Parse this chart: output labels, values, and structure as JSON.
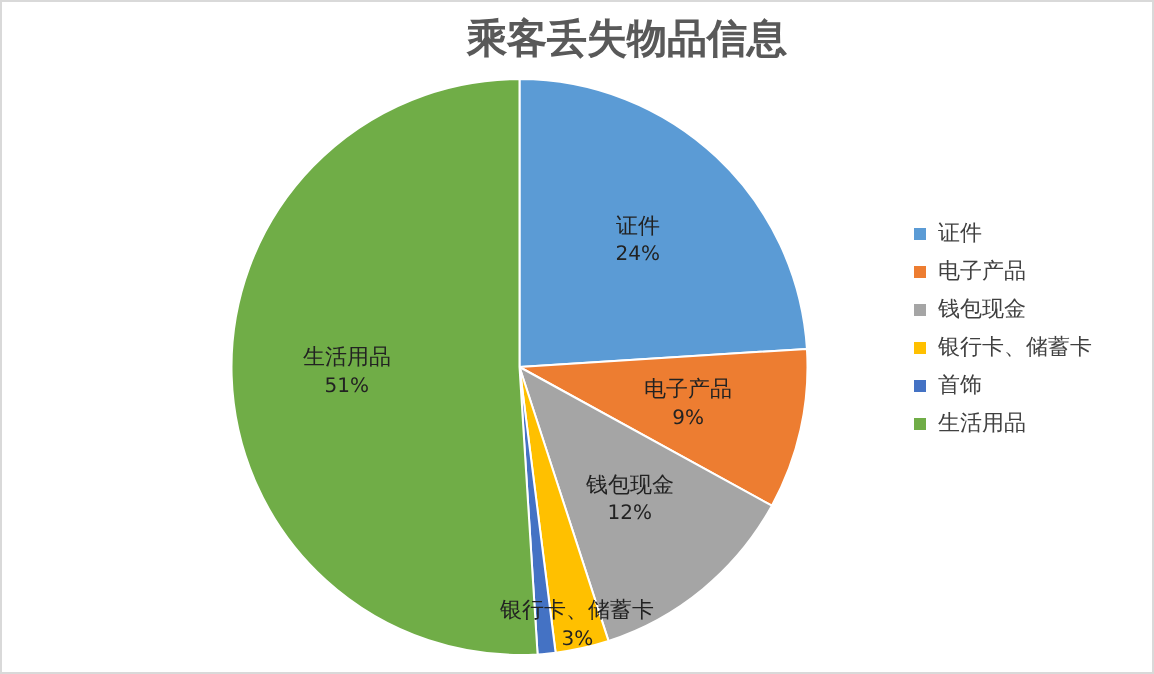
{
  "chart_data": {
    "type": "pie",
    "title": "乘客丢失物品信息",
    "categories": [
      "证件",
      "电子产品",
      "钱包现金",
      "银行卡、储蓄卡",
      "首饰",
      "生活用品"
    ],
    "values": [
      24,
      9,
      12,
      3,
      1,
      51
    ],
    "colors": [
      "#5b9bd5",
      "#ed7d31",
      "#a5a5a5",
      "#ffc000",
      "#4472c4",
      "#70ad47"
    ],
    "value_labels": [
      "24%",
      "9%",
      "12%",
      "3%",
      null,
      "51%"
    ],
    "legend": "right"
  }
}
